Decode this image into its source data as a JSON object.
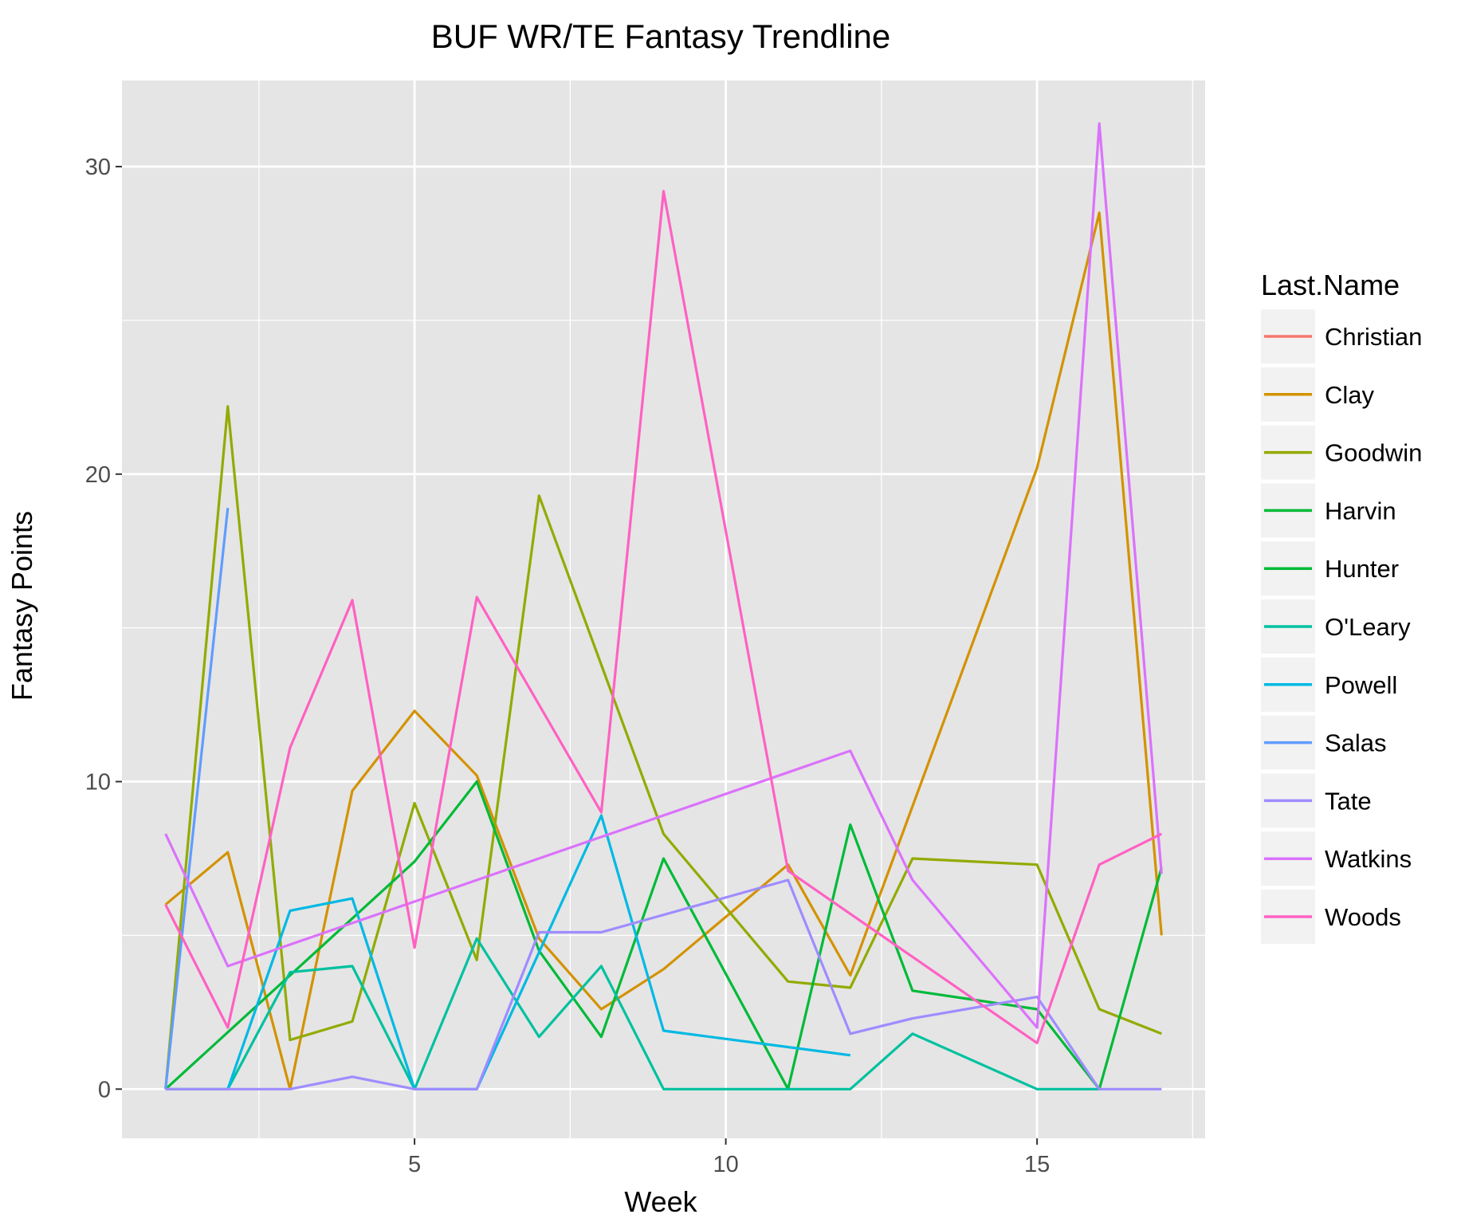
{
  "chart_data": {
    "type": "line",
    "title": "BUF WR/TE Fantasy Trendline",
    "xlabel": "Week",
    "ylabel": "Fantasy Points",
    "xlim": [
      0.3,
      17.7
    ],
    "ylim": [
      -1.6,
      32.8
    ],
    "x_ticks": [
      5,
      10,
      15
    ],
    "y_ticks": [
      0,
      10,
      20,
      30
    ],
    "x_tick_labels": [
      "5",
      "10",
      "15"
    ],
    "y_tick_labels": [
      "0",
      "10",
      "20",
      "30"
    ],
    "grid": true,
    "background": "#e5e5e5",
    "legend": {
      "title": "Last.Name",
      "position": "right"
    },
    "series": [
      {
        "name": "Christian",
        "color": "#F8766D",
        "points": []
      },
      {
        "name": "Clay",
        "color": "#D39200",
        "points": [
          [
            1,
            6.0
          ],
          [
            2,
            7.7
          ],
          [
            3,
            0.0
          ],
          [
            4,
            9.7
          ],
          [
            5,
            12.3
          ],
          [
            6,
            10.2
          ],
          [
            7,
            4.9
          ],
          [
            8,
            2.6
          ],
          [
            9,
            3.9
          ],
          [
            11,
            7.3
          ],
          [
            12,
            3.7
          ],
          [
            15,
            20.2
          ],
          [
            16,
            28.5
          ],
          [
            17,
            5.0
          ]
        ]
      },
      {
        "name": "Goodwin",
        "color": "#93AA00",
        "points": [
          [
            1,
            0.0
          ],
          [
            2,
            22.2
          ],
          [
            3,
            1.6
          ],
          [
            4,
            2.2
          ],
          [
            5,
            9.3
          ],
          [
            6,
            4.2
          ],
          [
            7,
            19.3
          ],
          [
            9,
            8.3
          ],
          [
            11,
            3.5
          ],
          [
            12,
            3.3
          ],
          [
            13,
            7.5
          ],
          [
            15,
            7.3
          ],
          [
            16,
            2.6
          ],
          [
            17,
            1.8
          ]
        ]
      },
      {
        "name": "Harvin",
        "color": "#00BA38",
        "points": []
      },
      {
        "name": "Hunter",
        "color": "#00BA38",
        "points": [
          [
            1,
            0.0
          ],
          [
            5,
            7.4
          ],
          [
            6,
            10.0
          ],
          [
            7,
            4.5
          ],
          [
            8,
            1.7
          ],
          [
            9,
            7.5
          ],
          [
            11,
            0.0
          ],
          [
            12,
            8.6
          ],
          [
            13,
            3.2
          ],
          [
            15,
            2.6
          ],
          [
            16,
            0.0
          ],
          [
            17,
            7.2
          ]
        ]
      },
      {
        "name": "O'Leary",
        "color": "#00C19F",
        "points": [
          [
            1,
            0.0
          ],
          [
            2,
            0.0
          ],
          [
            3,
            3.8
          ],
          [
            4,
            4.0
          ],
          [
            5,
            0.0
          ],
          [
            6,
            4.9
          ],
          [
            7,
            1.7
          ],
          [
            8,
            4.0
          ],
          [
            9,
            0.0
          ],
          [
            12,
            0.0
          ],
          [
            13,
            1.8
          ],
          [
            15,
            0.0
          ],
          [
            16,
            0.0
          ]
        ]
      },
      {
        "name": "Powell",
        "color": "#00B9E3",
        "points": [
          [
            2,
            0.0
          ],
          [
            3,
            5.8
          ],
          [
            4,
            6.2
          ],
          [
            5,
            0.0
          ],
          [
            6,
            0.0
          ],
          [
            8,
            8.9
          ],
          [
            9,
            1.9
          ],
          [
            12,
            1.1
          ]
        ]
      },
      {
        "name": "Salas",
        "color": "#619CFF",
        "points": [
          [
            1,
            0.0
          ],
          [
            2,
            18.9
          ]
        ]
      },
      {
        "name": "Tate",
        "color": "#9F8CFF",
        "points": [
          [
            1,
            0.0
          ],
          [
            3,
            0.0
          ],
          [
            4,
            0.4
          ],
          [
            5,
            0.0
          ],
          [
            6,
            0.0
          ],
          [
            7,
            5.1
          ],
          [
            8,
            5.1
          ],
          [
            11,
            6.8
          ],
          [
            12,
            1.8
          ],
          [
            13,
            2.3
          ],
          [
            15,
            3.0
          ],
          [
            16,
            0.0
          ],
          [
            17,
            0.0
          ]
        ]
      },
      {
        "name": "Watkins",
        "color": "#DB72FB",
        "points": [
          [
            1,
            8.3
          ],
          [
            2,
            4.0
          ],
          [
            12,
            11.0
          ],
          [
            13,
            6.8
          ],
          [
            15,
            2.0
          ],
          [
            16,
            31.4
          ],
          [
            17,
            7.0
          ]
        ]
      },
      {
        "name": "Woods",
        "color": "#FF61C3",
        "points": [
          [
            1,
            6.0
          ],
          [
            2,
            2.0
          ],
          [
            3,
            11.1
          ],
          [
            4,
            15.9
          ],
          [
            5,
            4.6
          ],
          [
            6,
            16.0
          ],
          [
            8,
            9.0
          ],
          [
            9,
            29.2
          ],
          [
            11,
            7.1
          ],
          [
            15,
            1.5
          ],
          [
            16,
            7.3
          ],
          [
            17,
            8.3
          ]
        ]
      }
    ]
  }
}
